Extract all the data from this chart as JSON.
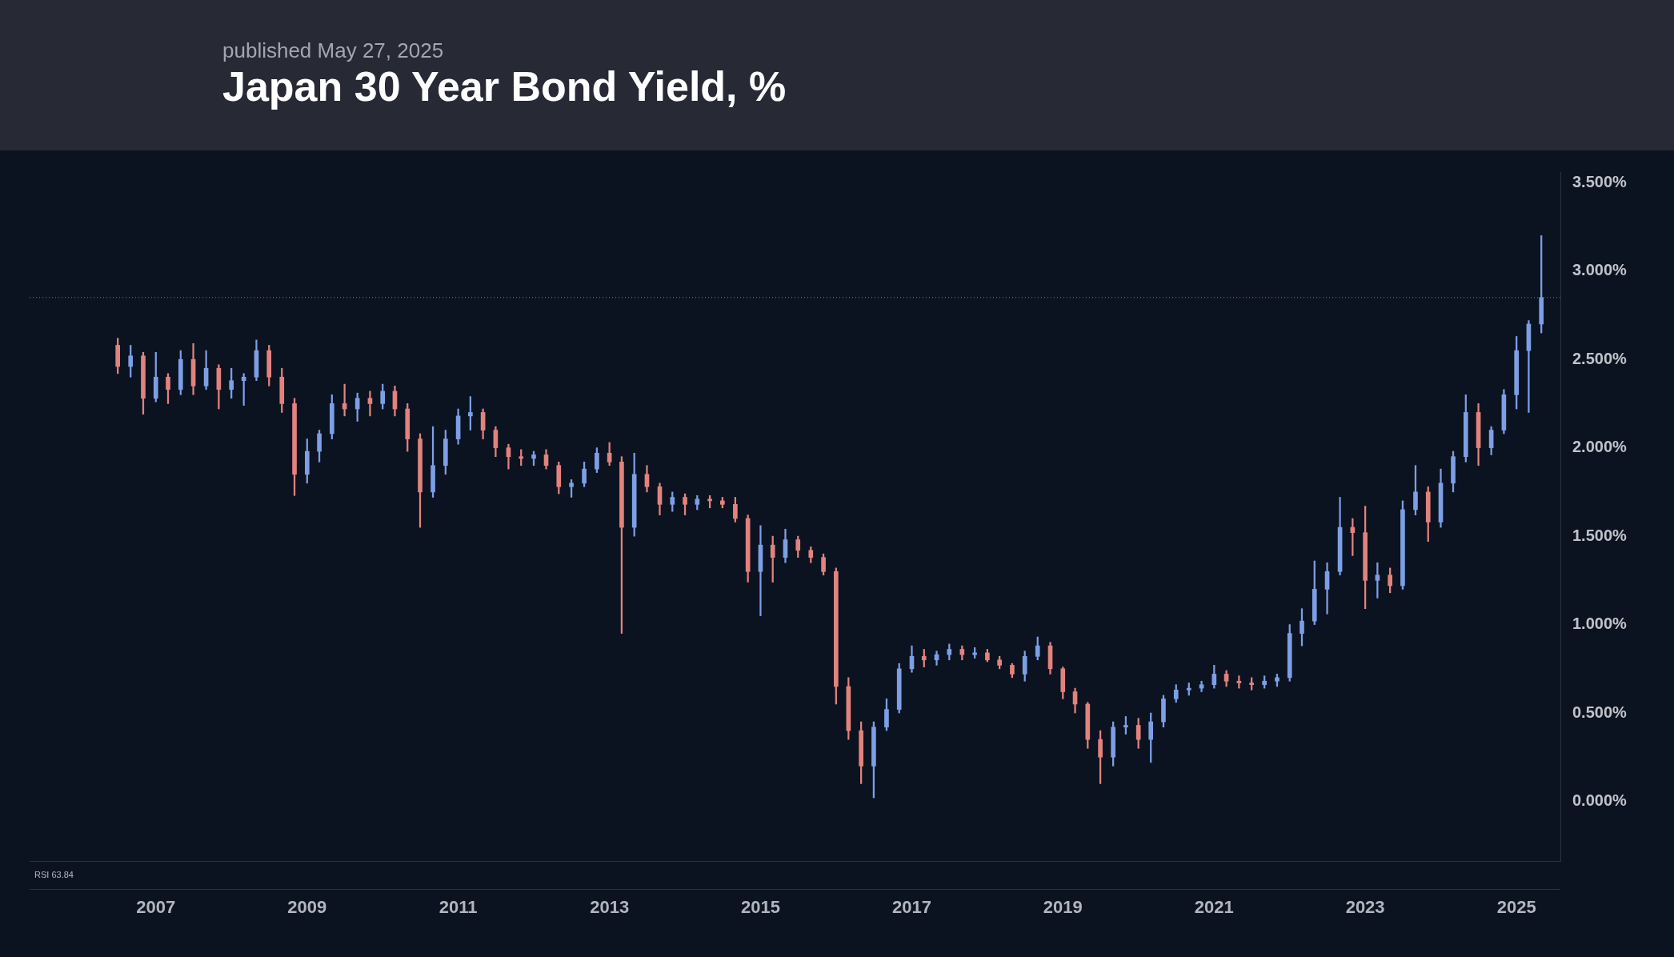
{
  "chart_data": {
    "type": "candlestick",
    "title": "Japan 30 Year Bond Yield, %",
    "subtitle": "published May 27, 2025",
    "annotations": [
      "RSI 63.84"
    ],
    "x": [
      "2006-07",
      "2006-09",
      "2006-11",
      "2007-01",
      "2007-03",
      "2007-05",
      "2007-07",
      "2007-09",
      "2007-11",
      "2008-01",
      "2008-03",
      "2008-05",
      "2008-07",
      "2008-09",
      "2008-11",
      "2009-01",
      "2009-03",
      "2009-05",
      "2009-07",
      "2009-09",
      "2009-11",
      "2010-01",
      "2010-03",
      "2010-05",
      "2010-07",
      "2010-09",
      "2010-11",
      "2011-01",
      "2011-03",
      "2011-05",
      "2011-07",
      "2011-09",
      "2011-11",
      "2012-01",
      "2012-03",
      "2012-05",
      "2012-07",
      "2012-09",
      "2012-11",
      "2013-01",
      "2013-03",
      "2013-05",
      "2013-07",
      "2013-09",
      "2013-11",
      "2014-01",
      "2014-03",
      "2014-05",
      "2014-07",
      "2014-09",
      "2014-11",
      "2015-01",
      "2015-03",
      "2015-05",
      "2015-07",
      "2015-09",
      "2015-11",
      "2016-01",
      "2016-03",
      "2016-05",
      "2016-07",
      "2016-09",
      "2016-11",
      "2017-01",
      "2017-03",
      "2017-05",
      "2017-07",
      "2017-09",
      "2017-11",
      "2018-01",
      "2018-03",
      "2018-05",
      "2018-07",
      "2018-09",
      "2018-11",
      "2019-01",
      "2019-03",
      "2019-05",
      "2019-07",
      "2019-09",
      "2019-11",
      "2020-01",
      "2020-03",
      "2020-05",
      "2020-07",
      "2020-09",
      "2020-11",
      "2021-01",
      "2021-03",
      "2021-05",
      "2021-07",
      "2021-09",
      "2021-11",
      "2022-01",
      "2022-03",
      "2022-05",
      "2022-07",
      "2022-09",
      "2022-11",
      "2023-01",
      "2023-03",
      "2023-05",
      "2023-07",
      "2023-09",
      "2023-11",
      "2024-01",
      "2024-03",
      "2024-05",
      "2024-07",
      "2024-09",
      "2024-11",
      "2025-01",
      "2025-03",
      "2025-05"
    ],
    "ohlc": [
      [
        2.58,
        2.62,
        2.42,
        2.46
      ],
      [
        2.46,
        2.58,
        2.4,
        2.52
      ],
      [
        2.52,
        2.54,
        2.19,
        2.28
      ],
      [
        2.28,
        2.54,
        2.26,
        2.4
      ],
      [
        2.4,
        2.42,
        2.25,
        2.33
      ],
      [
        2.33,
        2.55,
        2.3,
        2.5
      ],
      [
        2.5,
        2.59,
        2.3,
        2.35
      ],
      [
        2.35,
        2.55,
        2.33,
        2.45
      ],
      [
        2.45,
        2.47,
        2.22,
        2.33
      ],
      [
        2.33,
        2.45,
        2.28,
        2.38
      ],
      [
        2.38,
        2.42,
        2.24,
        2.4
      ],
      [
        2.4,
        2.61,
        2.38,
        2.55
      ],
      [
        2.55,
        2.58,
        2.35,
        2.4
      ],
      [
        2.4,
        2.45,
        2.2,
        2.25
      ],
      [
        2.25,
        2.28,
        1.73,
        1.85
      ],
      [
        1.85,
        2.05,
        1.8,
        1.98
      ],
      [
        1.98,
        2.1,
        1.92,
        2.08
      ],
      [
        2.08,
        2.3,
        2.05,
        2.25
      ],
      [
        2.25,
        2.36,
        2.18,
        2.22
      ],
      [
        2.22,
        2.31,
        2.15,
        2.28
      ],
      [
        2.28,
        2.32,
        2.18,
        2.25
      ],
      [
        2.25,
        2.36,
        2.22,
        2.32
      ],
      [
        2.32,
        2.35,
        2.18,
        2.22
      ],
      [
        2.22,
        2.25,
        1.98,
        2.05
      ],
      [
        2.05,
        2.08,
        1.55,
        1.75
      ],
      [
        1.75,
        2.12,
        1.72,
        1.9
      ],
      [
        1.9,
        2.1,
        1.85,
        2.05
      ],
      [
        2.05,
        2.22,
        2.02,
        2.18
      ],
      [
        2.18,
        2.29,
        2.1,
        2.2
      ],
      [
        2.2,
        2.22,
        2.05,
        2.1
      ],
      [
        2.1,
        2.12,
        1.95,
        2.0
      ],
      [
        2.0,
        2.02,
        1.88,
        1.95
      ],
      [
        1.95,
        1.99,
        1.9,
        1.94
      ],
      [
        1.94,
        1.98,
        1.9,
        1.96
      ],
      [
        1.96,
        1.99,
        1.88,
        1.9
      ],
      [
        1.9,
        1.92,
        1.74,
        1.78
      ],
      [
        1.78,
        1.82,
        1.72,
        1.8
      ],
      [
        1.8,
        1.92,
        1.78,
        1.88
      ],
      [
        1.88,
        2.0,
        1.86,
        1.97
      ],
      [
        1.97,
        2.03,
        1.9,
        1.92
      ],
      [
        1.92,
        1.95,
        0.95,
        1.55
      ],
      [
        1.55,
        1.97,
        1.5,
        1.85
      ],
      [
        1.85,
        1.9,
        1.75,
        1.78
      ],
      [
        1.78,
        1.8,
        1.62,
        1.68
      ],
      [
        1.68,
        1.75,
        1.64,
        1.72
      ],
      [
        1.72,
        1.74,
        1.62,
        1.68
      ],
      [
        1.68,
        1.73,
        1.65,
        1.71
      ],
      [
        1.71,
        1.73,
        1.66,
        1.7
      ],
      [
        1.7,
        1.72,
        1.66,
        1.68
      ],
      [
        1.68,
        1.72,
        1.58,
        1.6
      ],
      [
        1.6,
        1.62,
        1.24,
        1.3
      ],
      [
        1.3,
        1.56,
        1.05,
        1.45
      ],
      [
        1.45,
        1.5,
        1.24,
        1.38
      ],
      [
        1.38,
        1.54,
        1.35,
        1.48
      ],
      [
        1.48,
        1.5,
        1.38,
        1.42
      ],
      [
        1.42,
        1.44,
        1.35,
        1.38
      ],
      [
        1.38,
        1.4,
        1.28,
        1.3
      ],
      [
        1.3,
        1.32,
        0.55,
        0.65
      ],
      [
        0.65,
        0.7,
        0.35,
        0.4
      ],
      [
        0.4,
        0.45,
        0.1,
        0.2
      ],
      [
        0.2,
        0.45,
        0.02,
        0.42
      ],
      [
        0.42,
        0.58,
        0.4,
        0.52
      ],
      [
        0.52,
        0.78,
        0.5,
        0.75
      ],
      [
        0.75,
        0.88,
        0.73,
        0.82
      ],
      [
        0.82,
        0.86,
        0.76,
        0.8
      ],
      [
        0.8,
        0.85,
        0.77,
        0.83
      ],
      [
        0.83,
        0.89,
        0.8,
        0.86
      ],
      [
        0.86,
        0.88,
        0.8,
        0.83
      ],
      [
        0.83,
        0.87,
        0.81,
        0.84
      ],
      [
        0.84,
        0.86,
        0.79,
        0.8
      ],
      [
        0.8,
        0.82,
        0.75,
        0.77
      ],
      [
        0.77,
        0.78,
        0.7,
        0.72
      ],
      [
        0.72,
        0.85,
        0.68,
        0.82
      ],
      [
        0.82,
        0.93,
        0.8,
        0.88
      ],
      [
        0.88,
        0.9,
        0.72,
        0.75
      ],
      [
        0.75,
        0.76,
        0.58,
        0.62
      ],
      [
        0.62,
        0.64,
        0.5,
        0.55
      ],
      [
        0.55,
        0.56,
        0.3,
        0.35
      ],
      [
        0.35,
        0.4,
        0.1,
        0.25
      ],
      [
        0.25,
        0.45,
        0.2,
        0.42
      ],
      [
        0.42,
        0.48,
        0.38,
        0.43
      ],
      [
        0.43,
        0.47,
        0.3,
        0.35
      ],
      [
        0.35,
        0.5,
        0.22,
        0.45
      ],
      [
        0.45,
        0.6,
        0.42,
        0.58
      ],
      [
        0.58,
        0.66,
        0.56,
        0.63
      ],
      [
        0.63,
        0.67,
        0.6,
        0.64
      ],
      [
        0.64,
        0.68,
        0.62,
        0.66
      ],
      [
        0.66,
        0.77,
        0.64,
        0.72
      ],
      [
        0.72,
        0.74,
        0.65,
        0.68
      ],
      [
        0.68,
        0.71,
        0.64,
        0.67
      ],
      [
        0.67,
        0.7,
        0.63,
        0.66
      ],
      [
        0.66,
        0.71,
        0.64,
        0.68
      ],
      [
        0.68,
        0.72,
        0.65,
        0.7
      ],
      [
        0.7,
        1.0,
        0.68,
        0.95
      ],
      [
        0.95,
        1.09,
        0.88,
        1.02
      ],
      [
        1.02,
        1.36,
        1.0,
        1.2
      ],
      [
        1.2,
        1.35,
        1.06,
        1.3
      ],
      [
        1.3,
        1.72,
        1.28,
        1.55
      ],
      [
        1.55,
        1.6,
        1.39,
        1.52
      ],
      [
        1.52,
        1.67,
        1.09,
        1.25
      ],
      [
        1.25,
        1.35,
        1.15,
        1.28
      ],
      [
        1.28,
        1.32,
        1.18,
        1.22
      ],
      [
        1.22,
        1.7,
        1.2,
        1.65
      ],
      [
        1.65,
        1.9,
        1.62,
        1.75
      ],
      [
        1.75,
        1.78,
        1.47,
        1.58
      ],
      [
        1.58,
        1.88,
        1.55,
        1.8
      ],
      [
        1.8,
        1.98,
        1.75,
        1.95
      ],
      [
        1.95,
        2.3,
        1.92,
        2.2
      ],
      [
        2.2,
        2.25,
        1.9,
        2.0
      ],
      [
        2.0,
        2.12,
        1.96,
        2.1
      ],
      [
        2.1,
        2.33,
        2.08,
        2.3
      ],
      [
        2.3,
        2.63,
        2.22,
        2.55
      ],
      [
        2.55,
        2.72,
        2.2,
        2.7
      ],
      [
        2.7,
        3.2,
        2.65,
        2.85
      ]
    ],
    "colors": [
      "#e2837e",
      "#7d9fe6",
      "#e2837e",
      "#7d9fe6",
      "#e2837e",
      "#7d9fe6",
      "#e2837e",
      "#7d9fe6",
      "#e2837e",
      "#7d9fe6",
      "#7d9fe6",
      "#7d9fe6",
      "#e2837e",
      "#e2837e",
      "#e2837e",
      "#7d9fe6",
      "#7d9fe6",
      "#7d9fe6",
      "#e2837e",
      "#7d9fe6",
      "#e2837e",
      "#7d9fe6",
      "#e2837e",
      "#e2837e",
      "#e2837e",
      "#7d9fe6",
      "#7d9fe6",
      "#7d9fe6",
      "#7d9fe6",
      "#e2837e",
      "#e2837e",
      "#e2837e",
      "#e2837e",
      "#7d9fe6",
      "#e2837e",
      "#e2837e",
      "#7d9fe6",
      "#7d9fe6",
      "#7d9fe6",
      "#e2837e",
      "#e2837e",
      "#7d9fe6",
      "#e2837e",
      "#e2837e",
      "#7d9fe6",
      "#e2837e",
      "#7d9fe6",
      "#e2837e",
      "#e2837e",
      "#e2837e",
      "#e2837e",
      "#7d9fe6",
      "#e2837e",
      "#7d9fe6",
      "#e2837e",
      "#e2837e",
      "#e2837e",
      "#e2837e",
      "#e2837e",
      "#e2837e",
      "#7d9fe6",
      "#7d9fe6",
      "#7d9fe6",
      "#7d9fe6",
      "#e2837e",
      "#7d9fe6",
      "#7d9fe6",
      "#e2837e",
      "#7d9fe6",
      "#e2837e",
      "#e2837e",
      "#e2837e",
      "#7d9fe6",
      "#7d9fe6",
      "#e2837e",
      "#e2837e",
      "#e2837e",
      "#e2837e",
      "#e2837e",
      "#7d9fe6",
      "#7d9fe6",
      "#e2837e",
      "#7d9fe6",
      "#7d9fe6",
      "#7d9fe6",
      "#7d9fe6",
      "#7d9fe6",
      "#7d9fe6",
      "#e2837e",
      "#e2837e",
      "#e2837e",
      "#7d9fe6",
      "#7d9fe6",
      "#7d9fe6",
      "#7d9fe6",
      "#7d9fe6",
      "#7d9fe6",
      "#7d9fe6",
      "#e2837e",
      "#e2837e",
      "#7d9fe6",
      "#e2837e",
      "#7d9fe6",
      "#7d9fe6",
      "#e2837e",
      "#7d9fe6",
      "#7d9fe6",
      "#7d9fe6",
      "#e2837e",
      "#7d9fe6",
      "#7d9fe6",
      "#7d9fe6",
      "#7d9fe6",
      "#7d9fe6"
    ],
    "xlim": [
      "2005-05",
      "2025-08"
    ],
    "xticks": [
      "2007",
      "2009",
      "2011",
      "2013",
      "2015",
      "2017",
      "2019",
      "2021",
      "2023",
      "2025"
    ],
    "ylim": [
      -0.34,
      3.56
    ],
    "yticks": [
      {
        "value": 0,
        "label": "0.000%"
      },
      {
        "value": 0.5,
        "label": "0.500%"
      },
      {
        "value": 1,
        "label": "1.000%"
      },
      {
        "value": 1.5,
        "label": "1.500%"
      },
      {
        "value": 2,
        "label": "2.000%"
      },
      {
        "value": 2.5,
        "label": "2.500%"
      },
      {
        "value": 3,
        "label": "3.000%"
      },
      {
        "value": 3.5,
        "label": "3.500%"
      }
    ],
    "ref_lines": [
      {
        "axis": "y",
        "value": 2.85,
        "color": "#a0747a",
        "line_style": "dotted"
      }
    ]
  }
}
